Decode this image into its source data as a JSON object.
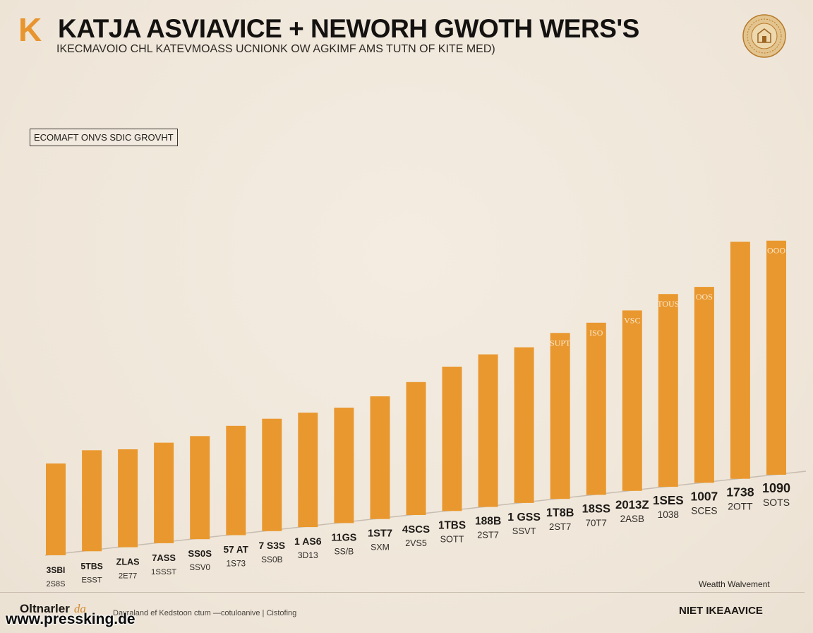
{
  "header": {
    "logo_letter": "K",
    "title": "KATJA ASVIAVICE + NEWORH GWOTH WERS'S",
    "subtitle": "IKECMAVOIO CHL KATEVMOASS UCNIONK OW AGKIMF AMS TUTN OF KITE MED)",
    "seal_icon": "emblem-seal-icon"
  },
  "boxed_label": "ECOMAFT ONVS SDIC GROVHT",
  "chart_data": {
    "type": "bar",
    "title": "KATJA ASVIAVICE + NEWORH GWOTH WERS'S",
    "subtitle": "IKECMAVOIO CHL KATEVMOASS UCNIONK OW AGKIMF AMS TUTN OF KITE MED)",
    "xlabel": "",
    "ylabel": "",
    "grid": false,
    "legend": "none",
    "bar_color": "#e9982f",
    "ylim": [
      0,
      540
    ],
    "values": [
      178,
      196,
      190,
      195,
      200,
      212,
      218,
      222,
      224,
      238,
      258,
      280,
      296,
      302,
      322,
      334,
      350,
      374,
      380,
      460,
      454
    ],
    "top_labels": [
      "",
      "",
      "",
      "",
      "",
      "",
      "",
      "",
      "",
      "",
      "",
      "",
      "",
      "",
      "SUPT",
      "ISO",
      "VSC",
      "TOUS",
      "OOS",
      "",
      "OOO"
    ],
    "tick_labels_1": [
      "3SBI",
      "5TBS",
      "ZLAS",
      "7ASS",
      "SS0S",
      "57 AT",
      "7 S3S",
      "1 AS6",
      "11GS",
      "1ST7",
      "4SCS",
      "1TBS",
      "188B",
      "1 GSS",
      "1T8B",
      "18SS",
      "2013Z",
      "1SES",
      "1007",
      "1738",
      "1090"
    ],
    "tick_labels_2": [
      "2S8S",
      "ESST",
      "2E77",
      "1SSST",
      "SSV0",
      "1S73",
      "SS0B",
      "3D13",
      "SS/B",
      "SXM",
      "2VS5",
      "SOTT",
      "2ST7",
      "SSVT",
      "2ST7",
      "70T7",
      "2ASB",
      "1038",
      "SCES",
      "2OTT",
      "SOTS"
    ]
  },
  "legend_note": "Weatth Walvement",
  "footer": {
    "brand": "Oltnarler",
    "brand_mark": "da",
    "note": "Davraland ef Kedstoon ctum  —cotuloanive  |  Cistofing",
    "right_label": "NIET IKEAAVICE"
  },
  "watermark": "www.pressking.de",
  "colors": {
    "background": "#f1e8dc",
    "accent": "#e9982f",
    "ink": "#1a1714"
  }
}
